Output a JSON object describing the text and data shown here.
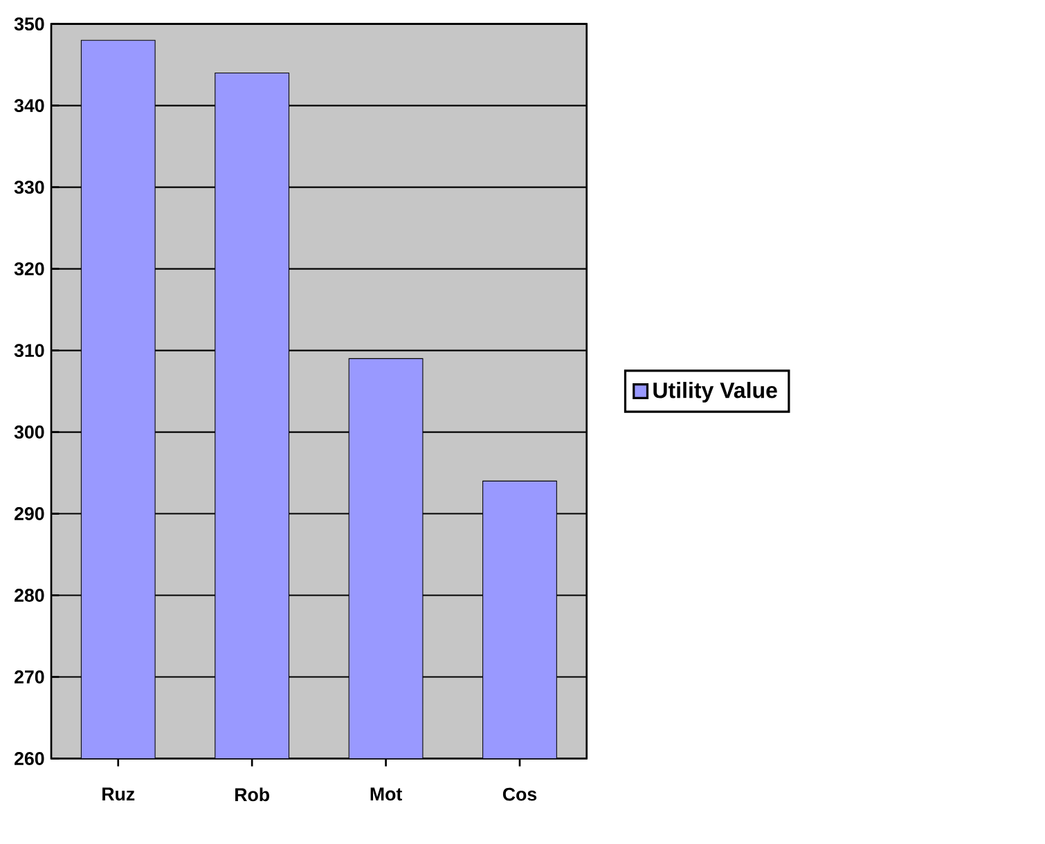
{
  "chart_data": {
    "type": "bar",
    "categories": [
      "Ruz",
      "Rob",
      "Mot",
      "Cos"
    ],
    "series": [
      {
        "name": "Utility Value",
        "color": "#9999ff",
        "values": [
          348,
          344,
          309,
          294
        ]
      }
    ],
    "ylim": [
      260,
      350
    ],
    "yticks": [
      260,
      270,
      280,
      290,
      300,
      310,
      320,
      330,
      340,
      350
    ],
    "grid": "y",
    "legend": "right"
  }
}
